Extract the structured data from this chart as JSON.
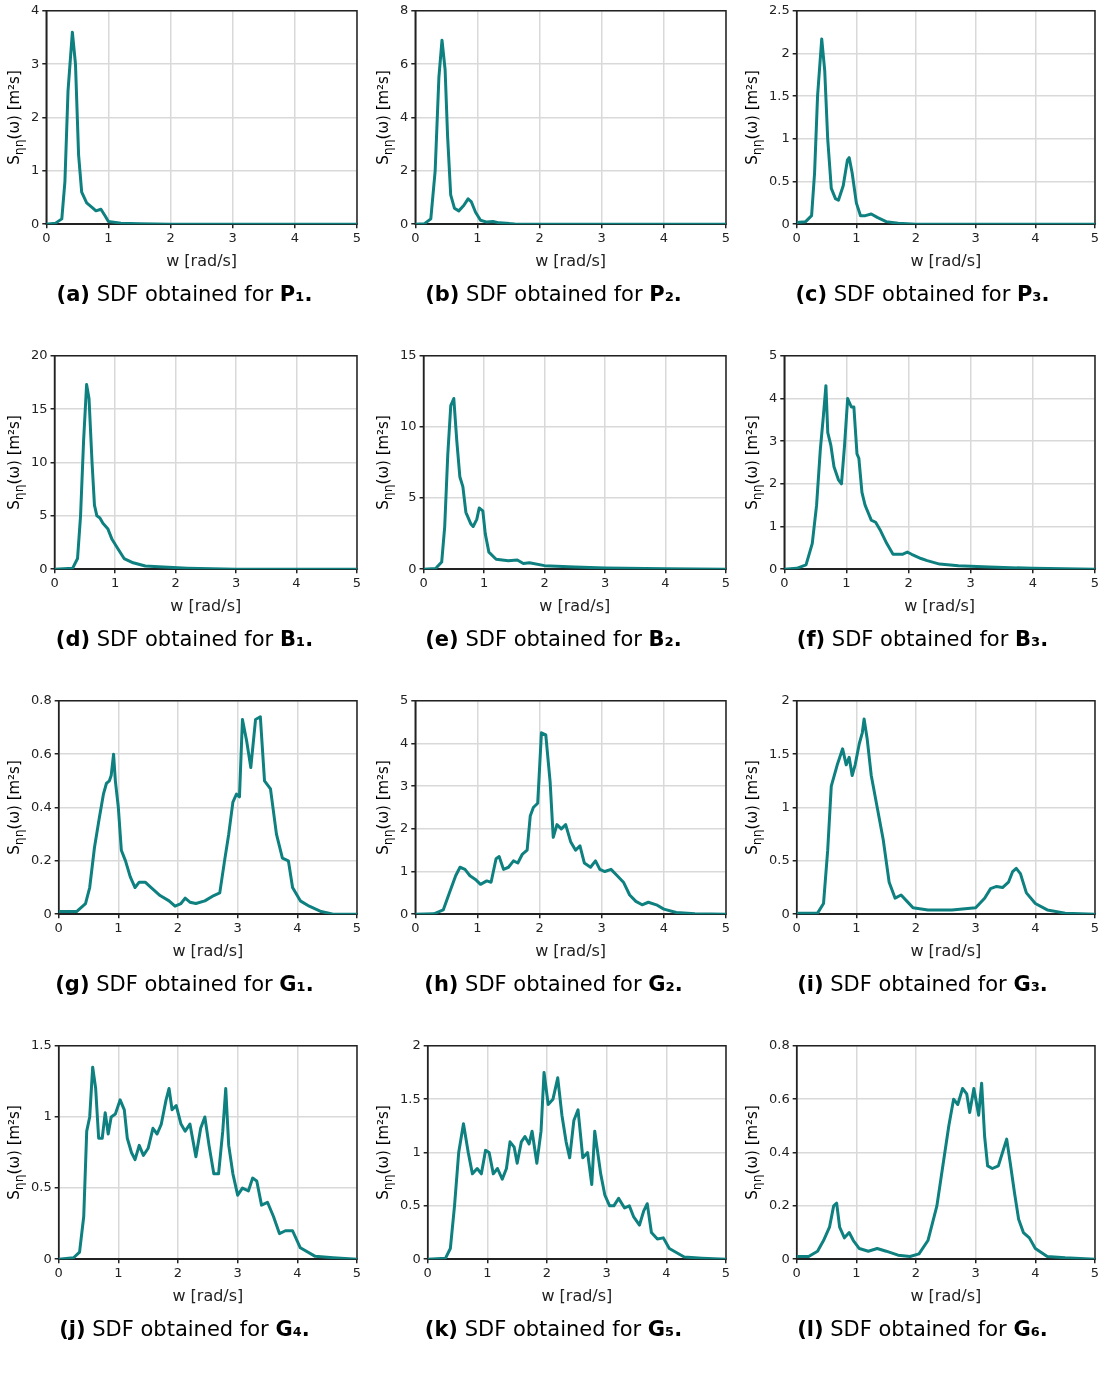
{
  "chart_data": [
    {
      "type": "line",
      "title": "(a) SDF obtained for P₁.",
      "xlabel": "w [rad/s]",
      "ylabel": "S$_{ηη}$(ω) [m²s]",
      "xlim": [
        0,
        5
      ],
      "xticks": [
        0,
        1,
        2,
        3,
        4,
        5
      ],
      "ylim": [
        0,
        4
      ],
      "yticks": [
        0,
        1,
        2,
        3,
        4
      ],
      "grid": true,
      "legend": false,
      "marker": "none",
      "series": [
        {
          "color": "#0e8080",
          "x": [
            0,
            0.15,
            0.25,
            0.3,
            0.35,
            0.42,
            0.47,
            0.52,
            0.57,
            0.65,
            0.75,
            0.8,
            0.88,
            0.95,
            1.0,
            1.2,
            1.5,
            2,
            5
          ],
          "values": [
            0,
            0.02,
            0.1,
            0.8,
            2.5,
            3.6,
            3.0,
            1.3,
            0.6,
            0.4,
            0.3,
            0.25,
            0.28,
            0.15,
            0.05,
            0.02,
            0.01,
            0,
            0
          ]
        }
      ]
    },
    {
      "type": "line",
      "title": "(b) SDF obtained for P₂.",
      "xlabel": "w [rad/s]",
      "ylabel": "S$_{ηη}$(ω) [m²s]",
      "xlim": [
        0,
        5
      ],
      "xticks": [
        0,
        1,
        2,
        3,
        4,
        5
      ],
      "ylim": [
        0,
        8
      ],
      "yticks": [
        0,
        2,
        4,
        6,
        8
      ],
      "grid": true,
      "legend": false,
      "marker": "none",
      "series": [
        {
          "color": "#0e8080",
          "x": [
            0,
            0.15,
            0.25,
            0.32,
            0.38,
            0.43,
            0.48,
            0.52,
            0.57,
            0.63,
            0.7,
            0.78,
            0.85,
            0.9,
            0.97,
            1.05,
            1.15,
            1.25,
            1.35,
            1.6,
            2,
            5
          ],
          "values": [
            0,
            0.02,
            0.2,
            2,
            5.5,
            6.9,
            5.8,
            3.3,
            1.1,
            0.6,
            0.5,
            0.7,
            0.95,
            0.85,
            0.45,
            0.15,
            0.08,
            0.1,
            0.05,
            0.01,
            0,
            0
          ]
        }
      ]
    },
    {
      "type": "line",
      "title": "(c) SDF obtained for P₃.",
      "xlabel": "w [rad/s]",
      "ylabel": "S$_{ηη}$(ω) [m²s]",
      "xlim": [
        0,
        5
      ],
      "xticks": [
        0,
        1,
        2,
        3,
        4,
        5
      ],
      "ylim": [
        0,
        2.5
      ],
      "yticks": [
        0,
        0.5,
        1,
        1.5,
        2,
        2.5
      ],
      "grid": true,
      "legend": false,
      "marker": "none",
      "series": [
        {
          "color": "#0e8080",
          "x": [
            0,
            0.15,
            0.25,
            0.3,
            0.35,
            0.42,
            0.47,
            0.52,
            0.58,
            0.65,
            0.7,
            0.78,
            0.85,
            0.88,
            0.93,
            1.0,
            1.07,
            1.15,
            1.25,
            1.35,
            1.5,
            1.7,
            2,
            5
          ],
          "values": [
            0.02,
            0.03,
            0.1,
            0.6,
            1.5,
            2.17,
            1.8,
            1.0,
            0.42,
            0.3,
            0.28,
            0.45,
            0.75,
            0.78,
            0.6,
            0.25,
            0.1,
            0.1,
            0.12,
            0.08,
            0.03,
            0.01,
            0,
            0
          ]
        }
      ]
    },
    {
      "type": "line",
      "title": "(d) SDF obtained for B₁.",
      "xlabel": "w [rad/s]",
      "ylabel": "S$_{ηη}$(ω) [m²s]",
      "xlim": [
        0,
        5
      ],
      "xticks": [
        0,
        1,
        2,
        3,
        4,
        5
      ],
      "ylim": [
        0,
        20
      ],
      "yticks": [
        0,
        5,
        10,
        15,
        20
      ],
      "grid": true,
      "legend": false,
      "marker": "none",
      "series": [
        {
          "color": "#0e8080",
          "x": [
            0,
            0.3,
            0.38,
            0.43,
            0.48,
            0.53,
            0.57,
            0.62,
            0.66,
            0.7,
            0.75,
            0.8,
            0.88,
            0.95,
            1.05,
            1.15,
            1.3,
            1.5,
            1.8,
            2.2,
            3,
            5
          ],
          "values": [
            0,
            0.1,
            1,
            5,
            12,
            17.3,
            16,
            10,
            6,
            5,
            4.8,
            4.3,
            3.8,
            2.8,
            1.9,
            1.0,
            0.6,
            0.3,
            0.2,
            0.1,
            0,
            0
          ]
        }
      ]
    },
    {
      "type": "line",
      "title": "(e) SDF obtained for B₂.",
      "xlabel": "w [rad/s]",
      "ylabel": "S$_{ηη}$(ω) [m²s]",
      "xlim": [
        0,
        5
      ],
      "xticks": [
        0,
        1,
        2,
        3,
        4,
        5
      ],
      "ylim": [
        0,
        15
      ],
      "yticks": [
        0,
        5,
        10,
        15
      ],
      "grid": true,
      "legend": false,
      "marker": "none",
      "series": [
        {
          "color": "#0e8080",
          "x": [
            0,
            0.2,
            0.3,
            0.35,
            0.4,
            0.45,
            0.5,
            0.55,
            0.6,
            0.65,
            0.7,
            0.78,
            0.82,
            0.88,
            0.92,
            0.98,
            1.02,
            1.08,
            1.2,
            1.4,
            1.55,
            1.65,
            1.75,
            2,
            2.5,
            3,
            4,
            5
          ],
          "values": [
            0,
            0.05,
            0.5,
            3,
            8,
            11.5,
            12,
            9,
            6.5,
            5.8,
            4,
            3.2,
            3.0,
            3.5,
            4.3,
            4.1,
            2.5,
            1.2,
            0.7,
            0.6,
            0.65,
            0.4,
            0.45,
            0.25,
            0.15,
            0.08,
            0.03,
            0
          ]
        }
      ]
    },
    {
      "type": "line",
      "title": "(f) SDF obtained for B₃.",
      "xlabel": "w [rad/s]",
      "ylabel": "S$_{ηη}$(ω) [m²s]",
      "xlim": [
        0,
        5
      ],
      "xticks": [
        0,
        1,
        2,
        3,
        4,
        5
      ],
      "ylim": [
        0,
        5
      ],
      "yticks": [
        0,
        1,
        2,
        3,
        4,
        5
      ],
      "grid": true,
      "legend": false,
      "marker": "none",
      "series": [
        {
          "color": "#0e8080",
          "x": [
            0,
            0.2,
            0.35,
            0.45,
            0.52,
            0.58,
            0.63,
            0.67,
            0.7,
            0.75,
            0.8,
            0.87,
            0.92,
            0.97,
            1.02,
            1.08,
            1.12,
            1.17,
            1.2,
            1.25,
            1.3,
            1.4,
            1.47,
            1.55,
            1.65,
            1.75,
            1.9,
            1.98,
            2.05,
            2.2,
            2.3,
            2.5,
            2.8,
            3.3,
            4,
            5
          ],
          "values": [
            0,
            0.02,
            0.1,
            0.6,
            1.5,
            2.8,
            3.6,
            4.3,
            3.2,
            2.9,
            2.4,
            2.1,
            2.0,
            2.9,
            4.0,
            3.8,
            3.8,
            2.7,
            2.6,
            1.8,
            1.5,
            1.15,
            1.1,
            0.9,
            0.6,
            0.35,
            0.35,
            0.4,
            0.35,
            0.25,
            0.2,
            0.12,
            0.08,
            0.05,
            0.02,
            0
          ]
        }
      ]
    },
    {
      "type": "line",
      "title": "(g) SDF obtained for G₁.",
      "xlabel": "w [rad/s]",
      "ylabel": "S$_{ηη}$(ω) [m²s]",
      "xlim": [
        0,
        5
      ],
      "xticks": [
        0,
        1,
        2,
        3,
        4,
        5
      ],
      "ylim": [
        0,
        0.8
      ],
      "yticks": [
        0,
        0.2,
        0.4,
        0.6,
        0.8
      ],
      "grid": true,
      "legend": false,
      "marker": "none",
      "series": [
        {
          "color": "#0e8080",
          "x": [
            0,
            0.3,
            0.45,
            0.52,
            0.6,
            0.68,
            0.75,
            0.8,
            0.85,
            0.88,
            0.92,
            0.95,
            1.0,
            1.05,
            1.12,
            1.2,
            1.28,
            1.35,
            1.45,
            1.55,
            1.7,
            1.85,
            1.95,
            2.05,
            2.12,
            2.2,
            2.3,
            2.45,
            2.6,
            2.7,
            2.78,
            2.85,
            2.92,
            2.98,
            3.03,
            3.08,
            3.15,
            3.22,
            3.3,
            3.38,
            3.45,
            3.55,
            3.65,
            3.75,
            3.85,
            3.92,
            4.05,
            4.2,
            4.4,
            4.6,
            5
          ],
          "values": [
            0.01,
            0.01,
            0.04,
            0.1,
            0.25,
            0.36,
            0.45,
            0.49,
            0.5,
            0.52,
            0.6,
            0.5,
            0.4,
            0.24,
            0.2,
            0.14,
            0.1,
            0.12,
            0.12,
            0.1,
            0.07,
            0.05,
            0.03,
            0.04,
            0.06,
            0.045,
            0.04,
            0.05,
            0.07,
            0.08,
            0.2,
            0.3,
            0.42,
            0.45,
            0.44,
            0.73,
            0.65,
            0.55,
            0.73,
            0.74,
            0.5,
            0.47,
            0.3,
            0.21,
            0.2,
            0.1,
            0.05,
            0.03,
            0.01,
            0,
            0
          ]
        }
      ]
    },
    {
      "type": "line",
      "title": "(h) SDF obtained for G₂.",
      "xlabel": "w [rad/s]",
      "ylabel": "S$_{ηη}$(ω) [m²s]",
      "xlim": [
        0,
        5
      ],
      "xticks": [
        0,
        1,
        2,
        3,
        4,
        5
      ],
      "ylim": [
        0,
        5
      ],
      "yticks": [
        0,
        1,
        2,
        3,
        4,
        5
      ],
      "grid": true,
      "legend": false,
      "marker": "none",
      "series": [
        {
          "color": "#0e8080",
          "x": [
            0,
            0.3,
            0.45,
            0.55,
            0.65,
            0.72,
            0.8,
            0.88,
            0.98,
            1.05,
            1.15,
            1.22,
            1.3,
            1.35,
            1.42,
            1.5,
            1.58,
            1.65,
            1.72,
            1.8,
            1.85,
            1.9,
            1.97,
            2.03,
            2.1,
            2.17,
            2.22,
            2.28,
            2.35,
            2.42,
            2.5,
            2.58,
            2.65,
            2.72,
            2.82,
            2.9,
            2.97,
            3.05,
            3.15,
            3.25,
            3.35,
            3.45,
            3.55,
            3.65,
            3.75,
            3.88,
            4.0,
            4.2,
            4.5,
            5
          ],
          "values": [
            0,
            0.01,
            0.1,
            0.5,
            0.9,
            1.1,
            1.05,
            0.9,
            0.8,
            0.7,
            0.78,
            0.75,
            1.3,
            1.35,
            1.05,
            1.1,
            1.25,
            1.2,
            1.4,
            1.5,
            2.3,
            2.5,
            2.6,
            4.25,
            4.2,
            3.1,
            1.8,
            2.1,
            2.0,
            2.1,
            1.7,
            1.5,
            1.6,
            1.2,
            1.1,
            1.25,
            1.05,
            1.0,
            1.05,
            0.9,
            0.75,
            0.45,
            0.3,
            0.22,
            0.28,
            0.22,
            0.12,
            0.04,
            0.01,
            0
          ]
        }
      ]
    },
    {
      "type": "line",
      "title": "(i) SDF obtained for G₃.",
      "xlabel": "w [rad/s]",
      "ylabel": "S$_{ηη}$(ω) [m²s]",
      "xlim": [
        0,
        5
      ],
      "xticks": [
        0,
        1,
        2,
        3,
        4,
        5
      ],
      "ylim": [
        0,
        2
      ],
      "yticks": [
        0,
        0.5,
        1,
        1.5,
        2
      ],
      "grid": true,
      "legend": false,
      "marker": "none",
      "series": [
        {
          "color": "#0e8080",
          "x": [
            0,
            0.35,
            0.45,
            0.52,
            0.58,
            0.68,
            0.77,
            0.83,
            0.88,
            0.93,
            0.98,
            1.05,
            1.1,
            1.13,
            1.18,
            1.25,
            1.35,
            1.45,
            1.55,
            1.65,
            1.75,
            1.85,
            1.95,
            2.2,
            2.6,
            3.0,
            3.15,
            3.25,
            3.35,
            3.45,
            3.55,
            3.62,
            3.68,
            3.75,
            3.85,
            4.0,
            4.2,
            4.5,
            5
          ],
          "values": [
            0.01,
            0.01,
            0.1,
            0.6,
            1.2,
            1.4,
            1.55,
            1.4,
            1.47,
            1.3,
            1.4,
            1.6,
            1.7,
            1.83,
            1.65,
            1.3,
            1.0,
            0.7,
            0.3,
            0.15,
            0.18,
            0.12,
            0.06,
            0.04,
            0.04,
            0.06,
            0.15,
            0.24,
            0.26,
            0.25,
            0.3,
            0.4,
            0.43,
            0.38,
            0.2,
            0.1,
            0.04,
            0.01,
            0
          ]
        }
      ]
    },
    {
      "type": "line",
      "title": "(j) SDF obtained for G₄.",
      "xlabel": "w [rad/s]",
      "ylabel": "S$_{ηη}$(ω) [m²s]",
      "xlim": [
        0,
        5
      ],
      "xticks": [
        0,
        1,
        2,
        3,
        4,
        5
      ],
      "ylim": [
        0,
        1.5
      ],
      "yticks": [
        0,
        0.5,
        1,
        1.5
      ],
      "grid": true,
      "legend": false,
      "marker": "none",
      "series": [
        {
          "color": "#0e8080",
          "x": [
            0,
            0.25,
            0.35,
            0.42,
            0.47,
            0.52,
            0.57,
            0.62,
            0.67,
            0.73,
            0.78,
            0.83,
            0.88,
            0.95,
            1.03,
            1.1,
            1.15,
            1.22,
            1.28,
            1.35,
            1.42,
            1.5,
            1.58,
            1.65,
            1.72,
            1.8,
            1.85,
            1.9,
            1.97,
            2.05,
            2.12,
            2.2,
            2.3,
            2.38,
            2.45,
            2.52,
            2.6,
            2.68,
            2.75,
            2.8,
            2.85,
            2.92,
            3.0,
            3.08,
            3.18,
            3.25,
            3.32,
            3.4,
            3.5,
            3.6,
            3.7,
            3.8,
            3.92,
            4.05,
            4.3,
            4.6,
            5
          ],
          "values": [
            0,
            0.01,
            0.05,
            0.3,
            0.9,
            1.0,
            1.35,
            1.2,
            0.85,
            0.85,
            1.03,
            0.88,
            1.0,
            1.02,
            1.12,
            1.05,
            0.85,
            0.75,
            0.7,
            0.8,
            0.73,
            0.78,
            0.92,
            0.88,
            0.95,
            1.12,
            1.2,
            1.05,
            1.08,
            0.95,
            0.9,
            0.95,
            0.72,
            0.92,
            1.0,
            0.8,
            0.6,
            0.6,
            0.9,
            1.2,
            0.8,
            0.6,
            0.45,
            0.5,
            0.48,
            0.57,
            0.55,
            0.38,
            0.4,
            0.3,
            0.18,
            0.2,
            0.2,
            0.08,
            0.02,
            0.01,
            0
          ]
        }
      ]
    },
    {
      "type": "line",
      "title": "(k) SDF obtained for G₅.",
      "xlabel": "w [rad/s]",
      "ylabel": "S$_{ηη}$(ω) [m²s]",
      "xlim": [
        0,
        5
      ],
      "xticks": [
        0,
        1,
        2,
        3,
        4,
        5
      ],
      "ylim": [
        0,
        2
      ],
      "yticks": [
        0,
        0.5,
        1,
        1.5,
        2
      ],
      "grid": true,
      "legend": false,
      "marker": "none",
      "series": [
        {
          "color": "#0e8080",
          "x": [
            0,
            0.3,
            0.38,
            0.45,
            0.52,
            0.6,
            0.68,
            0.75,
            0.83,
            0.9,
            0.97,
            1.03,
            1.1,
            1.17,
            1.25,
            1.32,
            1.38,
            1.45,
            1.5,
            1.57,
            1.63,
            1.7,
            1.75,
            1.83,
            1.9,
            1.95,
            2.02,
            2.1,
            2.18,
            2.25,
            2.32,
            2.38,
            2.45,
            2.52,
            2.6,
            2.68,
            2.75,
            2.8,
            2.9,
            2.97,
            3.05,
            3.12,
            3.2,
            3.3,
            3.38,
            3.45,
            3.55,
            3.62,
            3.68,
            3.75,
            3.85,
            3.95,
            4.05,
            4.3,
            4.6,
            5
          ],
          "values": [
            0,
            0.01,
            0.1,
            0.5,
            1.0,
            1.27,
            1.0,
            0.8,
            0.85,
            0.8,
            1.02,
            1.0,
            0.8,
            0.85,
            0.75,
            0.85,
            1.1,
            1.05,
            0.9,
            1.1,
            1.15,
            1.08,
            1.2,
            0.9,
            1.2,
            1.75,
            1.45,
            1.5,
            1.7,
            1.35,
            1.1,
            0.95,
            1.3,
            1.4,
            0.95,
            1.0,
            0.7,
            1.2,
            0.8,
            0.6,
            0.5,
            0.5,
            0.57,
            0.48,
            0.5,
            0.4,
            0.32,
            0.45,
            0.52,
            0.25,
            0.19,
            0.2,
            0.1,
            0.02,
            0.01,
            0
          ]
        }
      ]
    },
    {
      "type": "line",
      "title": "(l) SDF obtained for G₆.",
      "xlabel": "w [rad/s]",
      "ylabel": "S$_{ηη}$(ω) [m²s]",
      "xlim": [
        0,
        5
      ],
      "xticks": [
        0,
        1,
        2,
        3,
        4,
        5
      ],
      "ylim": [
        0,
        0.8
      ],
      "yticks": [
        0,
        0.2,
        0.4,
        0.6,
        0.8
      ],
      "grid": true,
      "legend": false,
      "marker": "none",
      "series": [
        {
          "color": "#0e8080",
          "x": [
            0,
            0.2,
            0.35,
            0.45,
            0.55,
            0.62,
            0.67,
            0.72,
            0.8,
            0.88,
            0.95,
            1.05,
            1.2,
            1.35,
            1.5,
            1.7,
            1.9,
            2.05,
            2.2,
            2.35,
            2.45,
            2.55,
            2.63,
            2.7,
            2.78,
            2.85,
            2.9,
            2.97,
            3.05,
            3.1,
            3.15,
            3.2,
            3.28,
            3.38,
            3.45,
            3.52,
            3.58,
            3.65,
            3.72,
            3.8,
            3.9,
            4.0,
            4.2,
            4.5,
            5
          ],
          "values": [
            0.01,
            0.01,
            0.03,
            0.07,
            0.12,
            0.2,
            0.21,
            0.12,
            0.08,
            0.1,
            0.07,
            0.04,
            0.03,
            0.04,
            0.03,
            0.015,
            0.01,
            0.02,
            0.07,
            0.2,
            0.35,
            0.5,
            0.6,
            0.58,
            0.64,
            0.62,
            0.55,
            0.64,
            0.54,
            0.66,
            0.46,
            0.35,
            0.34,
            0.35,
            0.4,
            0.45,
            0.36,
            0.25,
            0.15,
            0.1,
            0.08,
            0.04,
            0.01,
            0.005,
            0
          ]
        }
      ]
    }
  ]
}
